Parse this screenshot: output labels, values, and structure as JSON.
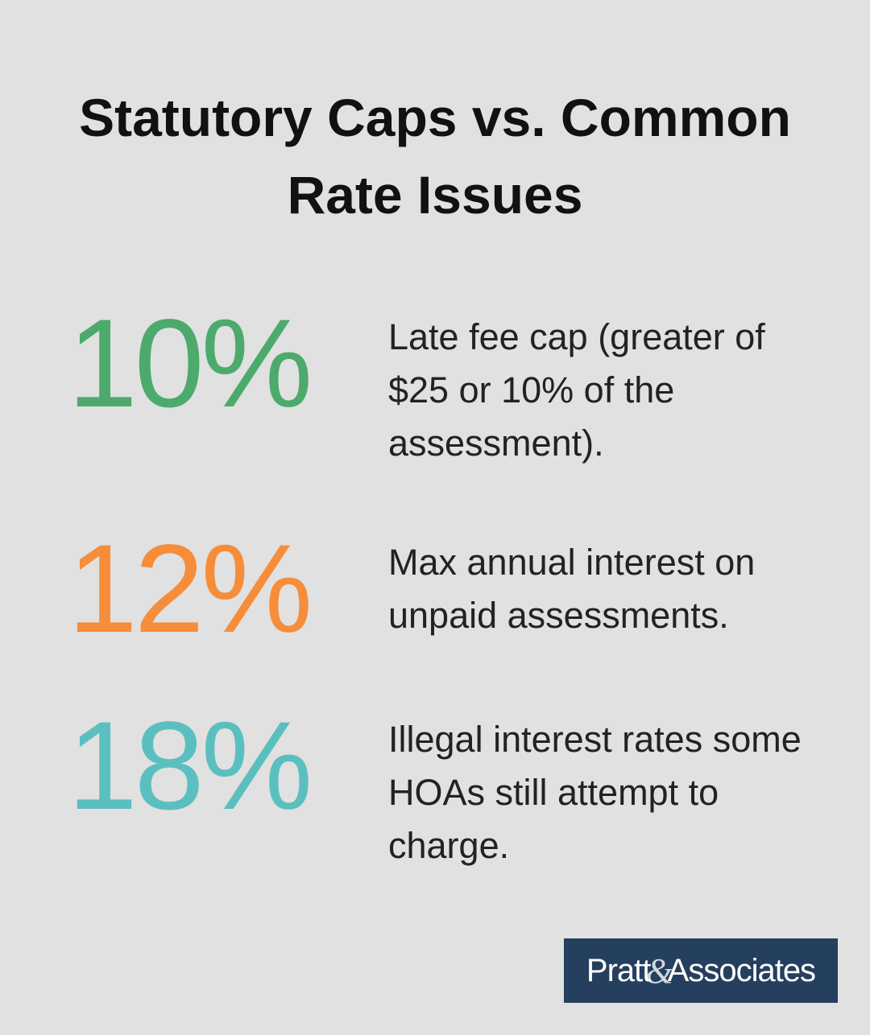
{
  "title": "Statutory Caps vs. Common Rate Issues",
  "stats": [
    {
      "value": "10%",
      "color": "#4caa6c",
      "description": "Late fee cap (greater of $25 or 10% of the assessment)."
    },
    {
      "value": "12%",
      "color": "#f68d3a",
      "description": "Max annual interest on unpaid assessments."
    },
    {
      "value": "18%",
      "color": "#5bbfc0",
      "description": "Illegal interest rates some HOAs still attempt to charge."
    }
  ],
  "logo": {
    "first": "Pratt",
    "amp": "&",
    "second": "Associates"
  }
}
